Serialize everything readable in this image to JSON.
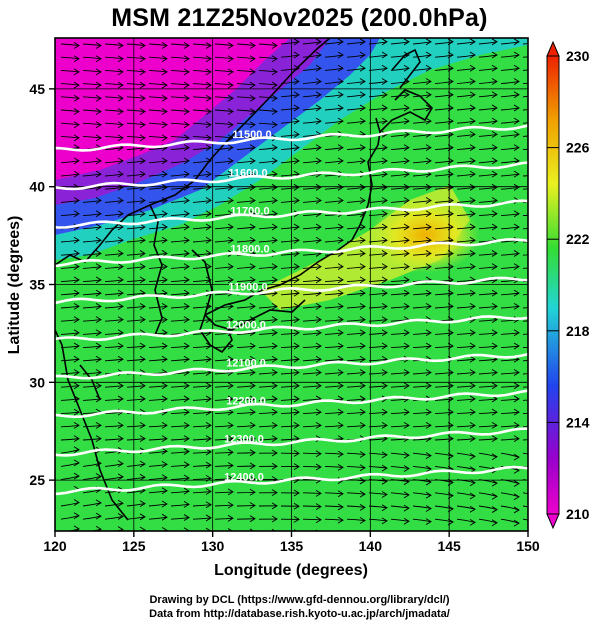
{
  "title": "MSM 21Z25Nov2025 (200.0hPa)",
  "map": {
    "x_axis_label": "Longitude (degrees)",
    "y_axis_label": "Latitude  (degrees)",
    "lon_range": [
      120,
      150
    ],
    "lat_range": [
      22.4,
      47.6
    ],
    "lon_ticks": [
      "120",
      "125",
      "130",
      "135",
      "140",
      "145",
      "150"
    ],
    "lat_ticks": [
      "25",
      "30",
      "35",
      "40",
      "45"
    ],
    "contour_labels": [
      "11500.0",
      "11600.0",
      "11700.0",
      "11800.0",
      "11900.0",
      "12000.0",
      "12100.0",
      "12200.0",
      "12300.0",
      "12400.0"
    ],
    "shading": "temperature",
    "vectors": "wind",
    "colors": {
      "magenta": "#ee00cc",
      "purple": "#9900cc",
      "blue": "#2244ee",
      "cyan": "#22d5d5",
      "green": "#33dd33",
      "yellow": "#eaf020",
      "orange": "#f0a000",
      "red": "#ee2200"
    }
  },
  "colorbar": {
    "ticks": [
      "230",
      "226",
      "222",
      "218",
      "214",
      "210"
    ],
    "min": 210,
    "max": 230
  },
  "credits": {
    "line1": "Drawing by DCL (https://www.gfd-dennou.org/library/dcl/)",
    "line2": "Data from http://database.rish.kyoto-u.ac.jp/arch/jmadata/"
  }
}
